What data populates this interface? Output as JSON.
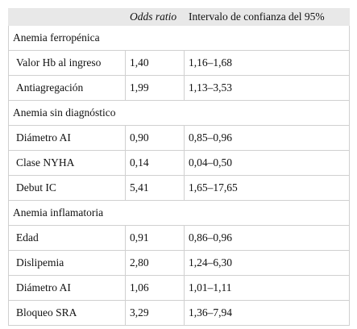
{
  "table": {
    "columns": [
      "Odds ratio",
      "Intervalo de confianza del 95%"
    ],
    "groups": [
      {
        "title": "Anemia ferropénica",
        "rows": [
          [
            "Valor Hb al ingreso",
            "1,40",
            "1,16–1,68"
          ],
          [
            "Antiagregación",
            "1,99",
            "1,13–3,53"
          ]
        ]
      },
      {
        "title": "Anemia sin diagnóstico",
        "rows": [
          [
            "Diámetro AI",
            "0,90",
            "0,85–0,96"
          ],
          [
            "Clase NYHA",
            "0,14",
            "0,04–0,50"
          ],
          [
            "Debut IC",
            "5,41",
            "1,65–17,65"
          ]
        ]
      },
      {
        "title": "Anemia inflamatoria",
        "rows": [
          [
            "Edad",
            "0,91",
            "0,86–0,96"
          ],
          [
            "Dislipemia",
            "2,80",
            "1,24–6,30"
          ],
          [
            "Diámetro AI",
            "1,06",
            "1,01–1,11"
          ],
          [
            "Bloqueo SRA",
            "3,29",
            "1,36–7,94"
          ]
        ]
      }
    ]
  }
}
